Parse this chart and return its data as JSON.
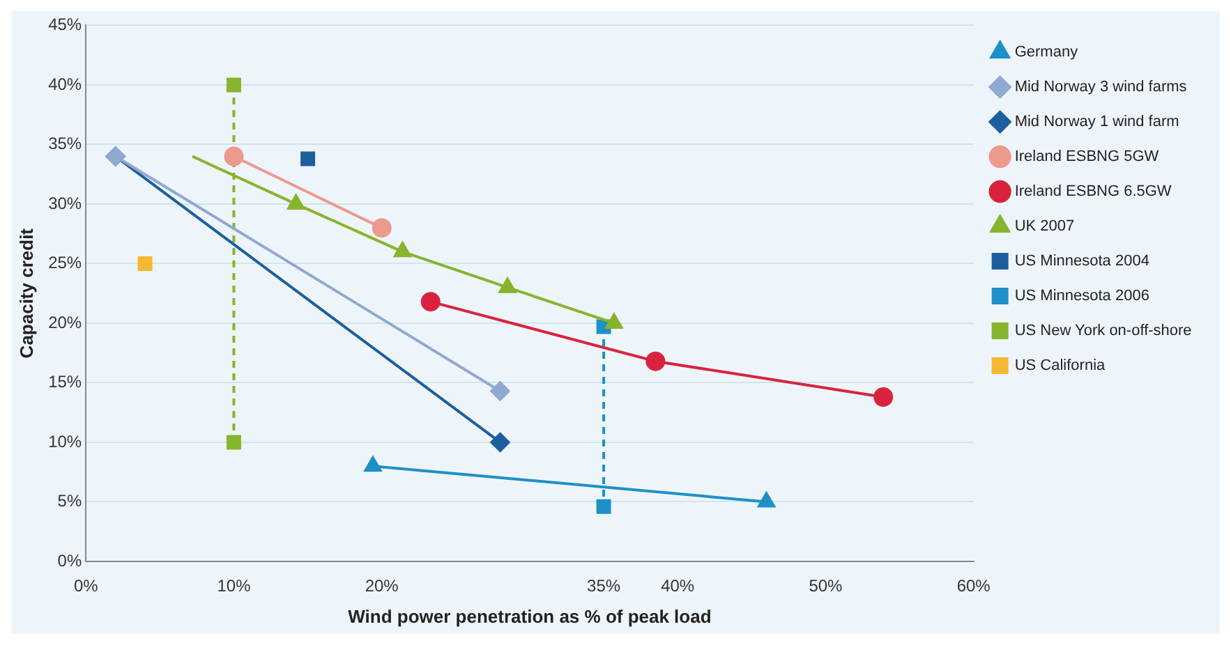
{
  "chart_data": {
    "type": "line",
    "xlabel": "Wind power penetration as % of peak load",
    "ylabel": "Capacity credit",
    "xlim": [
      0,
      60
    ],
    "xticks": [
      {
        "value": 0,
        "label": "0%"
      },
      {
        "value": 10,
        "label": "10%"
      },
      {
        "value": 20,
        "label": "20%"
      },
      {
        "value": 35,
        "label": "35%"
      },
      {
        "value": 40,
        "label": "40%"
      },
      {
        "value": 50,
        "label": "50%"
      },
      {
        "value": 60,
        "label": "60%"
      }
    ],
    "ylim": [
      0,
      45
    ],
    "yticks": [
      {
        "value": 0,
        "label": "0%"
      },
      {
        "value": 5,
        "label": "5%"
      },
      {
        "value": 10,
        "label": "10%"
      },
      {
        "value": 15,
        "label": "15%"
      },
      {
        "value": 20,
        "label": "20%"
      },
      {
        "value": 25,
        "label": "25%"
      },
      {
        "value": 30,
        "label": "30%"
      },
      {
        "value": 35,
        "label": "35%"
      },
      {
        "value": 40,
        "label": "40%"
      },
      {
        "value": 45,
        "label": "45%"
      }
    ],
    "grid": "y",
    "legend": "right",
    "series": [
      {
        "name": "Germany",
        "color": "#1f8fc8",
        "marker": "triangle",
        "line_style": "solid",
        "x": [
          19.4,
          46
        ],
        "values": [
          8,
          5
        ]
      },
      {
        "name": "Mid Norway 3 wind farms",
        "color": "#8fa9d0",
        "marker": "diamond",
        "line_style": "solid",
        "x": [
          2,
          28
        ],
        "values": [
          34,
          14.3
        ]
      },
      {
        "name": "Mid Norway 1 wind farm",
        "color": "#1c5f9e",
        "marker": "diamond",
        "line_style": "solid",
        "x": [
          2,
          28
        ],
        "values": [
          34,
          10
        ]
      },
      {
        "name": "Ireland ESBNG 5GW",
        "color": "#ec9a8e",
        "marker": "circle",
        "line_style": "solid",
        "x": [
          10,
          20
        ],
        "values": [
          34,
          28
        ]
      },
      {
        "name": "Ireland ESBNG 6.5GW",
        "color": "#d9233e",
        "marker": "circle",
        "line_style": "solid",
        "x": [
          23.3,
          38.5,
          53.9
        ],
        "values": [
          21.8,
          16.8,
          13.8
        ]
      },
      {
        "name": "UK 2007",
        "color": "#86b42c",
        "marker": "triangle",
        "line_style": "solid",
        "x": [
          7.2,
          14.2,
          21.4,
          28.5,
          35.7
        ],
        "values": [
          34,
          30,
          26,
          23,
          20
        ]
      },
      {
        "name": "US Minnesota 2004",
        "color": "#1c5f9e",
        "marker": "square",
        "line_style": "dashed",
        "x": [
          15
        ],
        "values": [
          33.8
        ]
      },
      {
        "name": "US Minnesota 2006",
        "color": "#1f8fc8",
        "marker": "square",
        "line_style": "dashed",
        "x": [
          35,
          35
        ],
        "values": [
          19.7,
          4.6
        ]
      },
      {
        "name": "US New York on-off-shore",
        "color": "#86b42c",
        "marker": "square",
        "line_style": "dashed",
        "x": [
          10,
          10
        ],
        "values": [
          40,
          10
        ]
      },
      {
        "name": "US California",
        "color": "#f7b733",
        "marker": "square",
        "line_style": "dashed",
        "x": [
          4
        ],
        "values": [
          25
        ]
      }
    ]
  }
}
